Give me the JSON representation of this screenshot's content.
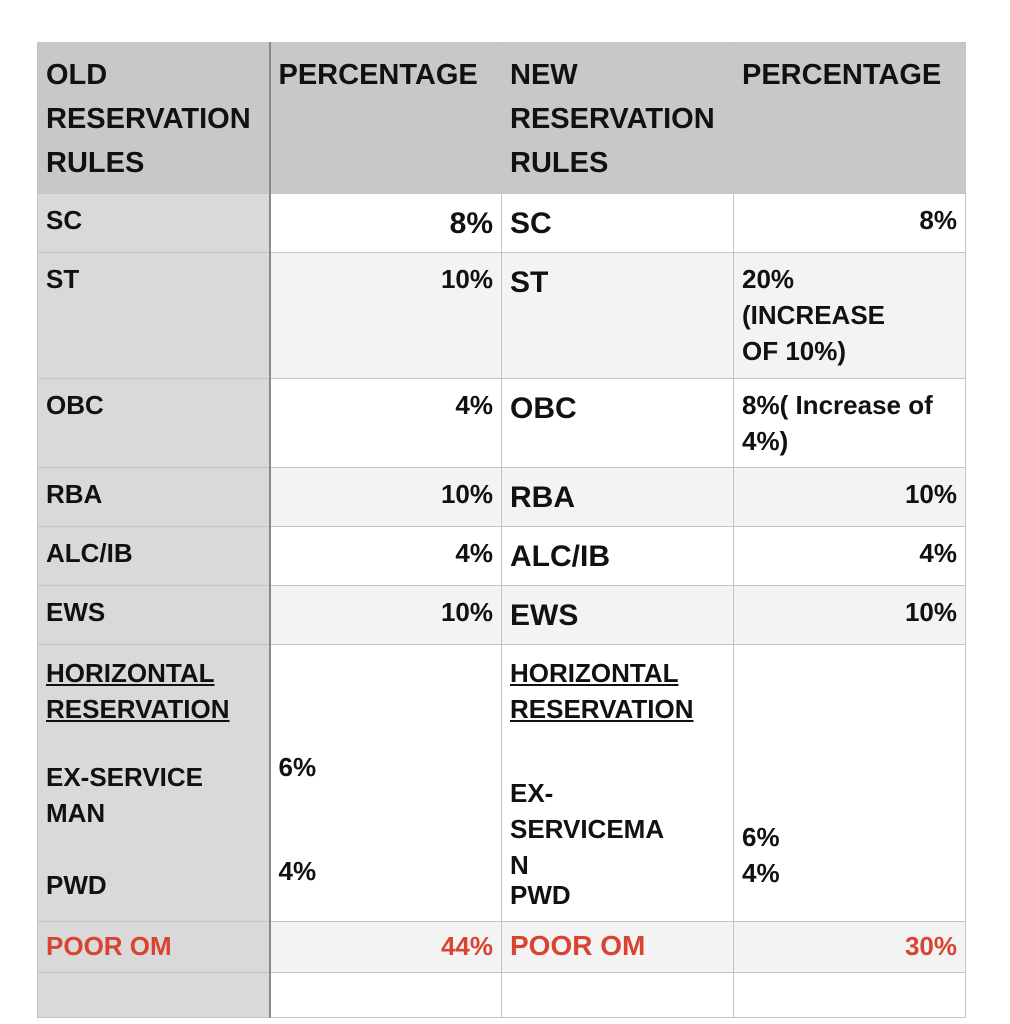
{
  "table": {
    "header": [
      "OLD RESERVATION RULES",
      "PERCENTAGE",
      "NEW RESERVATION RULES",
      "PERCENTAGE"
    ],
    "rows": [
      [
        "SC",
        "8%",
        "SC",
        "8%"
      ],
      [
        "ST",
        "10%",
        "ST",
        "20% (INCREASE OF 10%)"
      ],
      [
        "OBC",
        "4%",
        "OBC",
        "8%( Increase of 4%)"
      ],
      [
        "RBA",
        "10%",
        "RBA",
        "10%"
      ],
      [
        "ALC/IB",
        "4%",
        "ALC/IB",
        "4%"
      ],
      [
        "EWS",
        "10%",
        "EWS",
        "10%"
      ]
    ],
    "horizontal": {
      "old": {
        "heading": "HORIZONTAL RESERVATION",
        "items": [
          "EX-SERVICE MAN",
          "PWD"
        ],
        "percentages": [
          "6%",
          "4%"
        ]
      },
      "new": {
        "heading": "HORIZONTAL RESERVATION",
        "items": [
          "EX-SERVICEMAN",
          "PWD"
        ],
        "percentages": [
          "6%",
          "4%"
        ]
      }
    },
    "total": [
      "POOR OM",
      "44%",
      "POOR OM",
      "30%"
    ]
  }
}
